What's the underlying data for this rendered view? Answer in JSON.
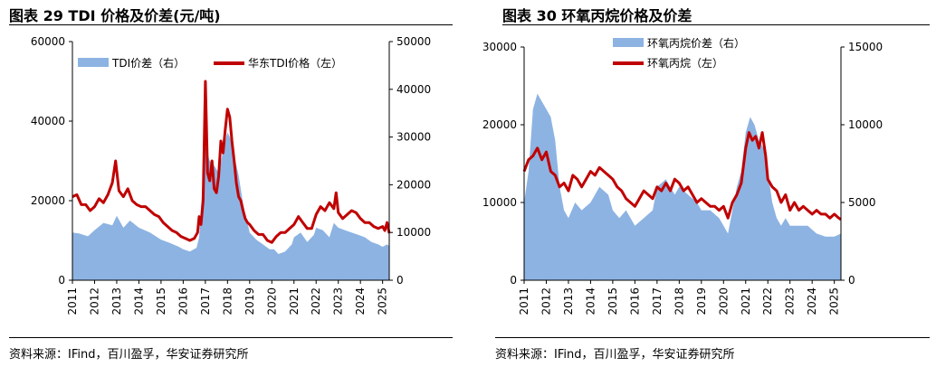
{
  "colors": {
    "area": "#8db3e2",
    "line": "#c00000",
    "axis": "#000000"
  },
  "panels": [
    {
      "title": "图表 29 TDI 价格及价差(元/吨)",
      "source": "资料来源：IFind，百川盈孚，华安证券研究所",
      "chart_data": {
        "type": "line+area",
        "title": "图表 29 TDI 价格及价差(元/吨)",
        "x_ticks": [
          "2011",
          "2012",
          "2013",
          "2014",
          "2015",
          "2016",
          "2017",
          "2018",
          "2019",
          "2020",
          "2021",
          "2022",
          "2023",
          "2024",
          "2025"
        ],
        "xlim": [
          2011.0,
          2025.3
        ],
        "y_left": {
          "ticks": [
            "0",
            "20000",
            "40000",
            "60000"
          ],
          "lim": [
            0,
            60000
          ]
        },
        "y_right": {
          "ticks": [
            "0",
            "10000",
            "20000",
            "30000",
            "40000",
            "50000"
          ],
          "lim": [
            0,
            50000
          ]
        },
        "legend": [
          "TDI价差（右）",
          "华东TDI价格（左）"
        ],
        "series": [
          {
            "name": "TDI价差（右）",
            "axis": "right",
            "kind": "area",
            "x": [
              2011.0,
              2011.3,
              2011.7,
              2012.0,
              2012.4,
              2012.8,
              2013.0,
              2013.3,
              2013.6,
              2014.0,
              2014.5,
              2015.0,
              2015.4,
              2015.8,
              2016.0,
              2016.3,
              2016.6,
              2016.72,
              2016.8,
              2016.9,
              2017.0,
              2017.2,
              2017.4,
              2017.6,
              2017.8,
              2018.0,
              2018.1,
              2018.3,
              2018.5,
              2018.7,
              2018.9,
              2019.0,
              2019.3,
              2019.6,
              2019.9,
              2020.1,
              2020.3,
              2020.6,
              2020.9,
              2021.0,
              2021.3,
              2021.6,
              2021.9,
              2022.0,
              2022.3,
              2022.6,
              2022.8,
              2023.0,
              2023.3,
              2023.6,
              2023.9,
              2024.2,
              2024.5,
              2024.8,
              2025.0,
              2025.2,
              2025.3
            ],
            "y": [
              10000,
              9800,
              9200,
              10500,
              12000,
              11500,
              13500,
              11000,
              12500,
              11000,
              10000,
              8500,
              7800,
              7000,
              6500,
              6000,
              6800,
              9000,
              15000,
              22000,
              28000,
              25000,
              24000,
              22500,
              27000,
              31000,
              30000,
              26000,
              22000,
              16000,
              12000,
              10000,
              8500,
              7500,
              6500,
              6500,
              5500,
              6000,
              7500,
              9000,
              10000,
              8000,
              9500,
              11000,
              10500,
              9000,
              12000,
              11000,
              10500,
              10000,
              9500,
              9000,
              8000,
              7500,
              7000,
              7500,
              7200
            ]
          },
          {
            "name": "华东TDI价格（左）",
            "axis": "left",
            "kind": "line",
            "x": [
              2011.0,
              2011.2,
              2011.4,
              2011.6,
              2011.8,
              2012.0,
              2012.2,
              2012.4,
              2012.6,
              2012.8,
              2012.95,
              2013.1,
              2013.3,
              2013.5,
              2013.7,
              2013.9,
              2014.1,
              2014.3,
              2014.5,
              2014.7,
              2014.9,
              2015.1,
              2015.3,
              2015.5,
              2015.7,
              2015.9,
              2016.1,
              2016.3,
              2016.5,
              2016.65,
              2016.72,
              2016.8,
              2016.9,
              2017.0,
              2017.1,
              2017.2,
              2017.3,
              2017.4,
              2017.5,
              2017.6,
              2017.7,
              2017.8,
              2017.9,
              2018.0,
              2018.1,
              2018.2,
              2018.3,
              2018.4,
              2018.5,
              2018.6,
              2018.7,
              2018.8,
              2018.9,
              2019.0,
              2019.2,
              2019.4,
              2019.6,
              2019.8,
              2020.0,
              2020.2,
              2020.4,
              2020.6,
              2020.8,
              2021.0,
              2021.2,
              2021.4,
              2021.6,
              2021.8,
              2022.0,
              2022.2,
              2022.4,
              2022.6,
              2022.8,
              2022.9,
              2023.0,
              2023.2,
              2023.4,
              2023.6,
              2023.8,
              2024.0,
              2024.2,
              2024.4,
              2024.6,
              2024.8,
              2025.0,
              2025.1,
              2025.2,
              2025.3
            ],
            "y": [
              21000,
              21500,
              19000,
              19000,
              17500,
              18500,
              20500,
              19500,
              21500,
              24500,
              30000,
              22500,
              21000,
              23000,
              20000,
              19000,
              18500,
              18500,
              17500,
              16500,
              16000,
              14500,
              13500,
              12500,
              12000,
              11000,
              10500,
              10000,
              10500,
              12000,
              16000,
              14000,
              20000,
              50000,
              27000,
              25000,
              30000,
              23000,
              22000,
              26000,
              35000,
              32000,
              38000,
              43000,
              41000,
              35000,
              30000,
              24500,
              21000,
              20000,
              17500,
              15500,
              14500,
              14000,
              12500,
              11500,
              11500,
              10000,
              9500,
              11000,
              12000,
              12000,
              13000,
              14000,
              16000,
              14500,
              13000,
              13000,
              16500,
              18500,
              17500,
              19500,
              18000,
              22000,
              17000,
              15500,
              16500,
              17500,
              17000,
              15500,
              14500,
              14500,
              13500,
              13000,
              13500,
              12500,
              14500,
              11800
            ]
          }
        ]
      }
    },
    {
      "title": "图表 30 环氧丙烷价格及价差",
      "source": "资料来源：IFind，百川盈孚，华安证券研究所",
      "chart_data": {
        "type": "line+area",
        "title": "图表 30 环氧丙烷价格及价差",
        "x_ticks": [
          "2011",
          "2012",
          "2013",
          "2014",
          "2015",
          "2016",
          "2017",
          "2018",
          "2019",
          "2020",
          "2021",
          "2022",
          "2023",
          "2024",
          "2025"
        ],
        "xlim": [
          2011.0,
          2025.3
        ],
        "y_left": {
          "ticks": [
            "0",
            "10000",
            "20000",
            "30000"
          ],
          "lim": [
            0,
            30000
          ]
        },
        "y_right": {
          "ticks": [
            "0",
            "5000",
            "10000",
            "15000"
          ],
          "lim": [
            0,
            15000
          ]
        },
        "legend": [
          "环氧丙烷价差（右）",
          "环氧丙烷（左）"
        ],
        "series": [
          {
            "name": "环氧丙烷价差（右）",
            "axis": "right",
            "kind": "area",
            "x": [
              2011.0,
              2011.2,
              2011.4,
              2011.6,
              2011.8,
              2012.0,
              2012.2,
              2012.4,
              2012.6,
              2012.8,
              2013.0,
              2013.3,
              2013.6,
              2014.0,
              2014.4,
              2014.8,
              2015.0,
              2015.3,
              2015.6,
              2016.0,
              2016.4,
              2016.8,
              2017.0,
              2017.4,
              2017.8,
              2018.0,
              2018.4,
              2018.8,
              2019.0,
              2019.4,
              2019.8,
              2020.0,
              2020.2,
              2020.4,
              2020.6,
              2020.8,
              2021.0,
              2021.2,
              2021.4,
              2021.6,
              2021.8,
              2022.0,
              2022.2,
              2022.4,
              2022.6,
              2022.8,
              2023.0,
              2023.4,
              2023.8,
              2024.2,
              2024.6,
              2025.0,
              2025.3
            ],
            "y": [
              5000,
              7000,
              11000,
              12000,
              11500,
              11000,
              10500,
              9000,
              6000,
              4500,
              4000,
              5000,
              4500,
              5000,
              6000,
              5500,
              4500,
              4000,
              4500,
              3500,
              4000,
              4500,
              6000,
              6500,
              5500,
              6000,
              5500,
              5000,
              4500,
              4500,
              4000,
              3500,
              3000,
              4500,
              6000,
              7000,
              9500,
              10500,
              10000,
              9000,
              8500,
              7000,
              5000,
              4000,
              3500,
              4000,
              3500,
              3500,
              3500,
              3000,
              2800,
              2800,
              3000
            ]
          },
          {
            "name": "环氧丙烷（左）",
            "axis": "left",
            "kind": "line",
            "x": [
              2011.0,
              2011.2,
              2011.4,
              2011.6,
              2011.8,
              2012.0,
              2012.2,
              2012.4,
              2012.6,
              2012.8,
              2013.0,
              2013.2,
              2013.4,
              2013.6,
              2013.8,
              2014.0,
              2014.2,
              2014.4,
              2014.6,
              2014.8,
              2015.0,
              2015.2,
              2015.4,
              2015.6,
              2015.8,
              2016.0,
              2016.2,
              2016.4,
              2016.6,
              2016.8,
              2017.0,
              2017.2,
              2017.4,
              2017.6,
              2017.8,
              2018.0,
              2018.2,
              2018.4,
              2018.6,
              2018.8,
              2019.0,
              2019.2,
              2019.4,
              2019.6,
              2019.8,
              2020.0,
              2020.2,
              2020.4,
              2020.6,
              2020.8,
              2021.0,
              2021.15,
              2021.3,
              2021.45,
              2021.6,
              2021.75,
              2021.9,
              2022.0,
              2022.2,
              2022.4,
              2022.6,
              2022.8,
              2023.0,
              2023.2,
              2023.4,
              2023.6,
              2023.8,
              2024.0,
              2024.2,
              2024.4,
              2024.6,
              2024.8,
              2025.0,
              2025.2,
              2025.3
            ],
            "y": [
              14000,
              15500,
              16000,
              17000,
              15500,
              16500,
              14000,
              13500,
              12000,
              12500,
              11500,
              13500,
              13000,
              12000,
              13000,
              14000,
              13500,
              14500,
              14000,
              13500,
              13000,
              12000,
              11500,
              10500,
              10000,
              9500,
              10500,
              11500,
              11000,
              10500,
              12000,
              11500,
              12500,
              11500,
              13000,
              12500,
              11500,
              12000,
              11000,
              10000,
              10500,
              10000,
              9500,
              9500,
              9000,
              9500,
              8000,
              10000,
              11000,
              12500,
              17000,
              19000,
              18000,
              18500,
              17000,
              19000,
              16000,
              13000,
              12000,
              11500,
              10000,
              11000,
              9000,
              10000,
              9000,
              9500,
              9000,
              8500,
              9000,
              8500,
              8500,
              8000,
              8500,
              8000,
              7800
            ]
          }
        ]
      }
    }
  ]
}
